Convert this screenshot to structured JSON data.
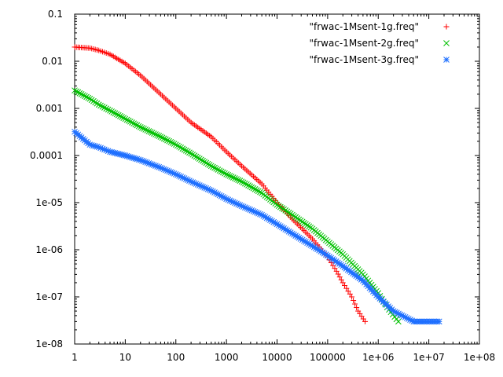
{
  "chart_data": {
    "type": "scatter",
    "x_scale": "log",
    "y_scale": "log",
    "xlim": [
      1,
      100000000
    ],
    "ylim": [
      1e-08,
      0.1
    ],
    "x_tick_values": [
      1,
      10,
      100,
      1000,
      10000,
      100000,
      1000000,
      10000000,
      100000000
    ],
    "x_tick_labels": [
      "1",
      "10",
      "100",
      "1000",
      "10000",
      "100000",
      "1e+06",
      "1e+07",
      "1e+08"
    ],
    "y_tick_values": [
      1e-08,
      1e-07,
      1e-06,
      1e-05,
      0.0001,
      0.001,
      0.01,
      0.1
    ],
    "y_tick_labels": [
      "1e-08",
      "1e-07",
      "1e-06",
      "1e-05",
      "0.0001",
      "0.001",
      "0.01",
      "0.1"
    ],
    "legend_position": "top-right",
    "grid": false,
    "series": [
      {
        "name": "\"frwac-1Msent-1g.freq\"",
        "color": "#ff0000",
        "marker": "plus",
        "points": [
          [
            1,
            0.02
          ],
          [
            2,
            0.019
          ],
          [
            3,
            0.017
          ],
          [
            5,
            0.014
          ],
          [
            10,
            0.009
          ],
          [
            20,
            0.005
          ],
          [
            50,
            0.002
          ],
          [
            100,
            0.001
          ],
          [
            200,
            0.0005
          ],
          [
            500,
            0.00025
          ],
          [
            1000,
            0.00012
          ],
          [
            2000,
            6e-05
          ],
          [
            5000,
            2.5e-05
          ],
          [
            10000,
            1e-05
          ],
          [
            20000,
            4.5e-06
          ],
          [
            50000,
            1.7e-06
          ],
          [
            100000,
            7e-07
          ],
          [
            150000,
            3.5e-07
          ],
          [
            200000,
            2e-07
          ],
          [
            300000,
            1e-07
          ],
          [
            400000,
            5e-08
          ],
          [
            550000,
            3e-08
          ]
        ]
      },
      {
        "name": "\"frwac-1Msent-2g.freq\"",
        "color": "#00c000",
        "marker": "cross",
        "points": [
          [
            1,
            0.0024
          ],
          [
            2,
            0.0016
          ],
          [
            3,
            0.0012
          ],
          [
            5,
            0.0009
          ],
          [
            10,
            0.0006
          ],
          [
            20,
            0.0004
          ],
          [
            50,
            0.00025
          ],
          [
            100,
            0.00017
          ],
          [
            200,
            0.00011
          ],
          [
            500,
            6e-05
          ],
          [
            1000,
            4e-05
          ],
          [
            2000,
            2.8e-05
          ],
          [
            5000,
            1.6e-05
          ],
          [
            10000,
            9e-06
          ],
          [
            20000,
            5.5e-06
          ],
          [
            50000,
            2.8e-06
          ],
          [
            100000,
            1.5e-06
          ],
          [
            200000,
            8e-07
          ],
          [
            500000,
            3e-07
          ],
          [
            1000000,
            1.2e-07
          ],
          [
            1500000,
            6e-08
          ],
          [
            2500000,
            3e-08
          ]
        ]
      },
      {
        "name": "\"frwac-1Msent-3g.freq\"",
        "color": "#1e6fff",
        "marker": "star",
        "points": [
          [
            1,
            0.00032
          ],
          [
            2,
            0.00017
          ],
          [
            3,
            0.00015
          ],
          [
            5,
            0.00012
          ],
          [
            10,
            0.0001
          ],
          [
            20,
            8e-05
          ],
          [
            50,
            5.5e-05
          ],
          [
            100,
            4e-05
          ],
          [
            200,
            2.8e-05
          ],
          [
            500,
            1.8e-05
          ],
          [
            1000,
            1.2e-05
          ],
          [
            2000,
            8.5e-06
          ],
          [
            5000,
            5.5e-06
          ],
          [
            10000,
            3.5e-06
          ],
          [
            20000,
            2.2e-06
          ],
          [
            50000,
            1.2e-06
          ],
          [
            100000,
            7.5e-07
          ],
          [
            200000,
            4.5e-07
          ],
          [
            500000,
            2.2e-07
          ],
          [
            1000000,
            1e-07
          ],
          [
            2000000,
            5e-08
          ],
          [
            5000000,
            3e-08
          ],
          [
            10000000,
            3e-08
          ],
          [
            16000000,
            3e-08
          ]
        ]
      }
    ]
  }
}
